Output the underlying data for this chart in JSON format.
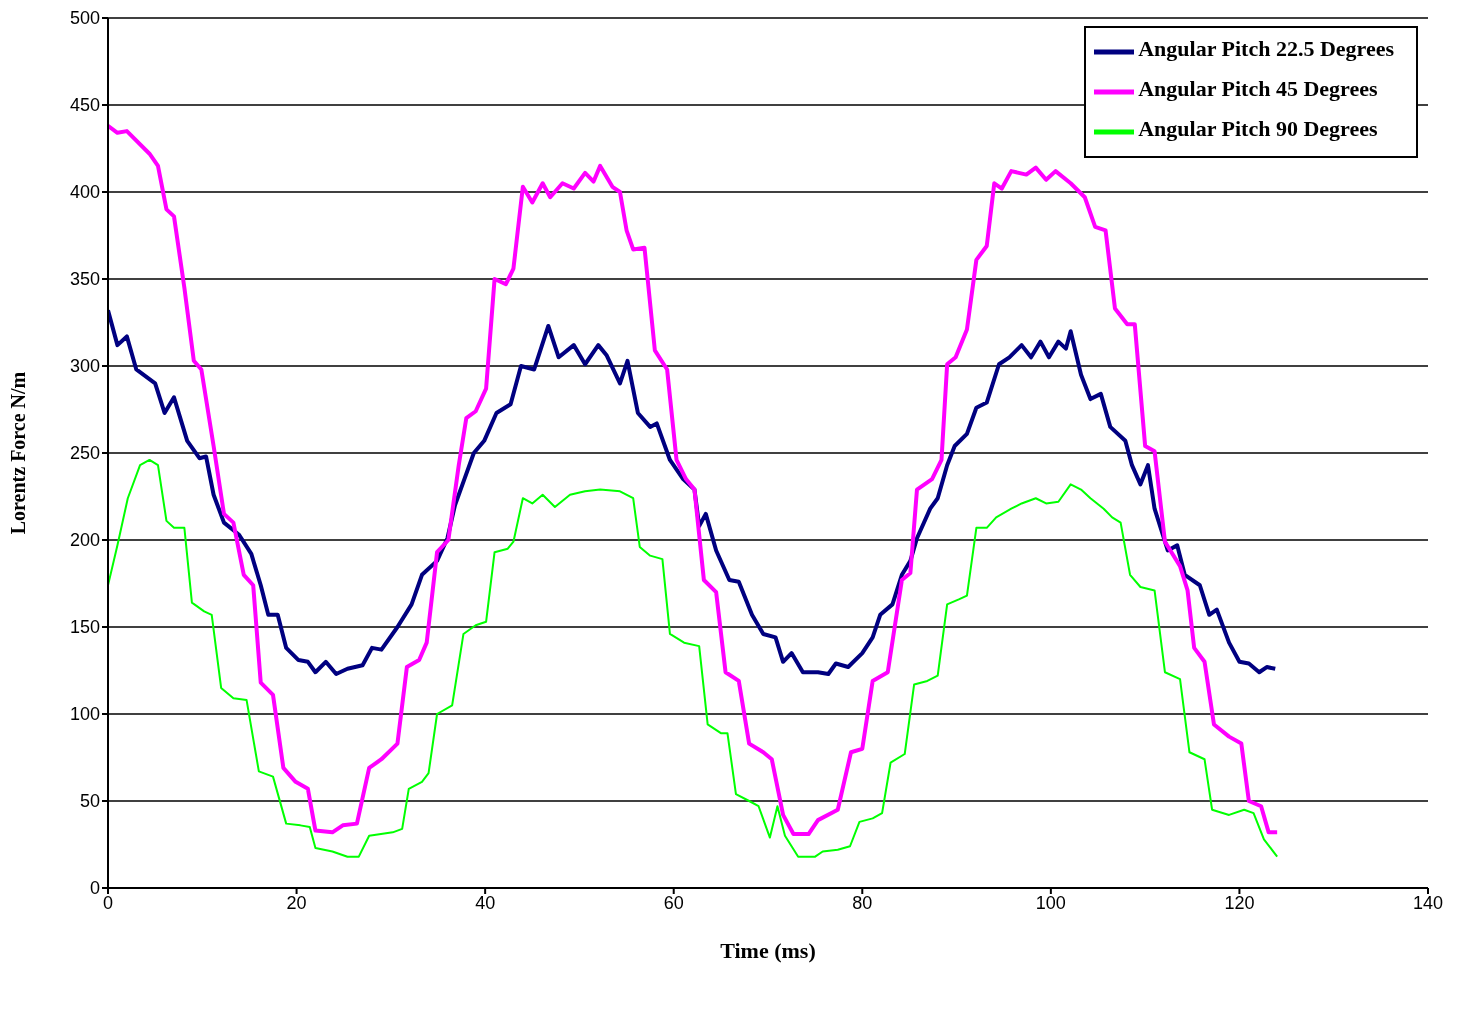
{
  "chart_data": {
    "type": "line",
    "xlabel": "Time (ms)",
    "ylabel": "Lorentz Force N/m",
    "xlim": [
      0,
      140
    ],
    "xticks": [
      0,
      20,
      40,
      60,
      80,
      100,
      120,
      140
    ],
    "ylim": [
      0,
      500
    ],
    "yticks": [
      0,
      50,
      100,
      150,
      200,
      250,
      300,
      350,
      400,
      450,
      500
    ],
    "grid": "y",
    "legend": "top right",
    "marker": "none",
    "line_style": "solid",
    "series": [
      {
        "name": "Angular Pitch 22.5 Degrees",
        "color": "#000080",
        "x": [
          0,
          1,
          2,
          3,
          5,
          6,
          7,
          8.4,
          9.7,
          10.4,
          11.2,
          12.3,
          13.9,
          15.2,
          16.2,
          17,
          18,
          18.9,
          20.2,
          21.2,
          22,
          23.1,
          24.2,
          25.4,
          27,
          28,
          29,
          30.7,
          32.2,
          33.3,
          34.9,
          36,
          36.8,
          37.8,
          38.8,
          39.9,
          41.2,
          42.7,
          43.8,
          45.2,
          46.7,
          47.8,
          49.4,
          50.6,
          52,
          52.9,
          54.3,
          55.1,
          56.2,
          57.5,
          58.2,
          59.6,
          61,
          62.2,
          62.7,
          63.4,
          64.5,
          65.9,
          66.9,
          68.3,
          69.5,
          70.8,
          71.6,
          72.5,
          73.7,
          75.3,
          76.4,
          77.2,
          78.5,
          80,
          81.1,
          81.9,
          83.2,
          84.2,
          85.1,
          85.8,
          87.2,
          88,
          89,
          89.8,
          91.1,
          92.1,
          93.2,
          94.5,
          95.6,
          96.9,
          97.9,
          98.9,
          99.8,
          100.8,
          101.6,
          102.1,
          103.2,
          104.2,
          105.3,
          106.3,
          107.9,
          108.6,
          109.5,
          110.3,
          111,
          112.4,
          113.4,
          114.2,
          115.8,
          116.8,
          117.6,
          118.9,
          120,
          121,
          122.1,
          122.9,
          123.8
        ],
        "values": [
          332,
          312,
          317,
          298,
          290,
          273,
          282,
          257,
          247,
          248,
          226,
          210,
          203,
          192,
          174,
          157,
          157,
          138,
          131,
          130,
          124,
          130,
          123,
          126,
          128,
          138,
          137,
          150,
          163,
          180,
          188,
          201,
          220,
          235,
          250,
          257,
          273,
          278,
          300,
          298,
          323,
          305,
          312,
          301,
          312,
          306,
          290,
          303,
          273,
          265,
          267,
          246,
          235,
          229,
          208,
          215,
          194,
          177,
          176,
          157,
          146,
          144,
          130,
          135,
          124,
          124,
          123,
          129,
          127,
          135,
          144,
          157,
          163,
          180,
          188,
          201,
          218,
          224,
          243,
          254,
          261,
          276,
          279,
          301,
          305,
          312,
          305,
          314,
          305,
          314,
          310,
          320,
          295,
          281,
          284,
          265,
          257,
          243,
          232,
          243,
          218,
          194,
          197,
          180,
          174,
          157,
          160,
          141,
          130,
          129,
          124,
          127,
          126
        ]
      },
      {
        "name": "Angular Pitch 45 Degrees",
        "color": "#ff00ff",
        "x": [
          0,
          1,
          2,
          4.4,
          5.3,
          6.2,
          7,
          8.1,
          9.1,
          9.9,
          11.2,
          12.3,
          13.3,
          14.4,
          15.4,
          16.2,
          17.5,
          18.6,
          19.9,
          21.2,
          22,
          23.8,
          24.9,
          26.4,
          27.7,
          29,
          30.7,
          31.7,
          33,
          33.8,
          34.9,
          36.1,
          37.2,
          38,
          39,
          40.1,
          41,
          42.2,
          43,
          44,
          45,
          46.1,
          46.9,
          48.2,
          49.4,
          50.6,
          51.5,
          52.2,
          53.5,
          54.3,
          55,
          55.7,
          56.9,
          58,
          59.3,
          60.3,
          61.3,
          62.2,
          63.2,
          64.5,
          65.5,
          66.9,
          68,
          69.5,
          70.4,
          71.6,
          72.7,
          74.3,
          75.3,
          77.4,
          78.8,
          80,
          81.1,
          82.7,
          84.2,
          85.1,
          85.8,
          87.4,
          88.4,
          89,
          89.9,
          91.1,
          92.1,
          93.2,
          94,
          94.8,
          95.8,
          97.4,
          98.4,
          99.5,
          100.5,
          102.1,
          103.6,
          104.7,
          105.8,
          106.8,
          108.1,
          108.9,
          110,
          111,
          112.1,
          113.7,
          114.5,
          115.2,
          116.3,
          117.3,
          118.9,
          120.2,
          121,
          122.3,
          123.1,
          124
        ],
        "values": [
          438,
          434,
          435,
          422,
          415,
          390,
          386,
          345,
          303,
          298,
          254,
          215,
          210,
          180,
          174,
          118,
          111,
          69,
          61,
          57,
          33,
          32,
          36,
          37,
          69,
          74,
          83,
          127,
          131,
          141,
          193,
          200,
          243,
          270,
          274,
          287,
          350,
          347,
          356,
          403,
          394,
          405,
          397,
          405,
          402,
          411,
          406,
          415,
          403,
          400,
          378,
          367,
          368,
          309,
          298,
          246,
          235,
          229,
          177,
          170,
          124,
          119,
          83,
          78,
          74,
          42,
          31,
          31,
          39,
          45,
          78,
          80,
          119,
          124,
          177,
          181,
          229,
          235,
          246,
          301,
          305,
          321,
          361,
          369,
          405,
          402,
          412,
          410,
          414,
          407,
          412,
          405,
          397,
          380,
          378,
          333,
          324,
          324,
          254,
          251,
          199,
          185,
          171,
          138,
          130,
          94,
          87,
          83,
          50,
          47,
          32,
          32
        ]
      },
      {
        "name": "Angular Pitch 90 Degrees",
        "color": "#00ff00",
        "x": [
          0,
          1,
          2.1,
          3.4,
          4.4,
          5.3,
          6.2,
          7,
          8.1,
          8.9,
          10.2,
          11,
          12,
          13.3,
          14.7,
          16,
          17.5,
          18.9,
          20.4,
          21.4,
          22,
          23.8,
          25.4,
          26.6,
          27.7,
          30.2,
          31.2,
          31.9,
          33.3,
          34,
          34.9,
          36.5,
          37.7,
          39,
          40.1,
          41,
          42.4,
          43,
          44,
          45,
          46.1,
          47.4,
          49,
          50.6,
          52.2,
          54.3,
          55.7,
          56.4,
          57.5,
          58.8,
          59.6,
          61.1,
          62.7,
          63.6,
          65,
          65.7,
          66.6,
          68,
          69,
          70.2,
          71,
          71.8,
          73.2,
          75,
          75.8,
          77.4,
          78.7,
          79.7,
          81.1,
          82.1,
          83,
          84.5,
          85.5,
          86.9,
          88,
          89,
          90.3,
          91.1,
          92.1,
          93.2,
          94.2,
          95.8,
          96.9,
          98.4,
          99.5,
          100.8,
          102.1,
          103.2,
          104.2,
          105.6,
          106.5,
          107.4,
          108.4,
          109.5,
          111,
          112.1,
          113.7,
          114.7,
          116.3,
          117.1,
          118.9,
          120.5,
          121.5,
          122.6,
          124
        ],
        "values": [
          174,
          197,
          224,
          243,
          246,
          243,
          211,
          207,
          207,
          164,
          159,
          157,
          115,
          109,
          108,
          67,
          64,
          37,
          36,
          35,
          23,
          21,
          18,
          18,
          30,
          32,
          34,
          57,
          61,
          66,
          100,
          105,
          146,
          151,
          153,
          193,
          195,
          199,
          224,
          221,
          226,
          219,
          226,
          228,
          229,
          228,
          224,
          196,
          191,
          189,
          146,
          141,
          139,
          94,
          89,
          89,
          54,
          50,
          47,
          29,
          47,
          30,
          18,
          18,
          21,
          22,
          24,
          38,
          40,
          43,
          72,
          77,
          117,
          119,
          122,
          163,
          166,
          168,
          207,
          207,
          213,
          218,
          221,
          224,
          221,
          222,
          232,
          229,
          224,
          218,
          213,
          210,
          180,
          173,
          171,
          124,
          120,
          78,
          74,
          45,
          42,
          45,
          43,
          28,
          18
        ]
      }
    ]
  }
}
